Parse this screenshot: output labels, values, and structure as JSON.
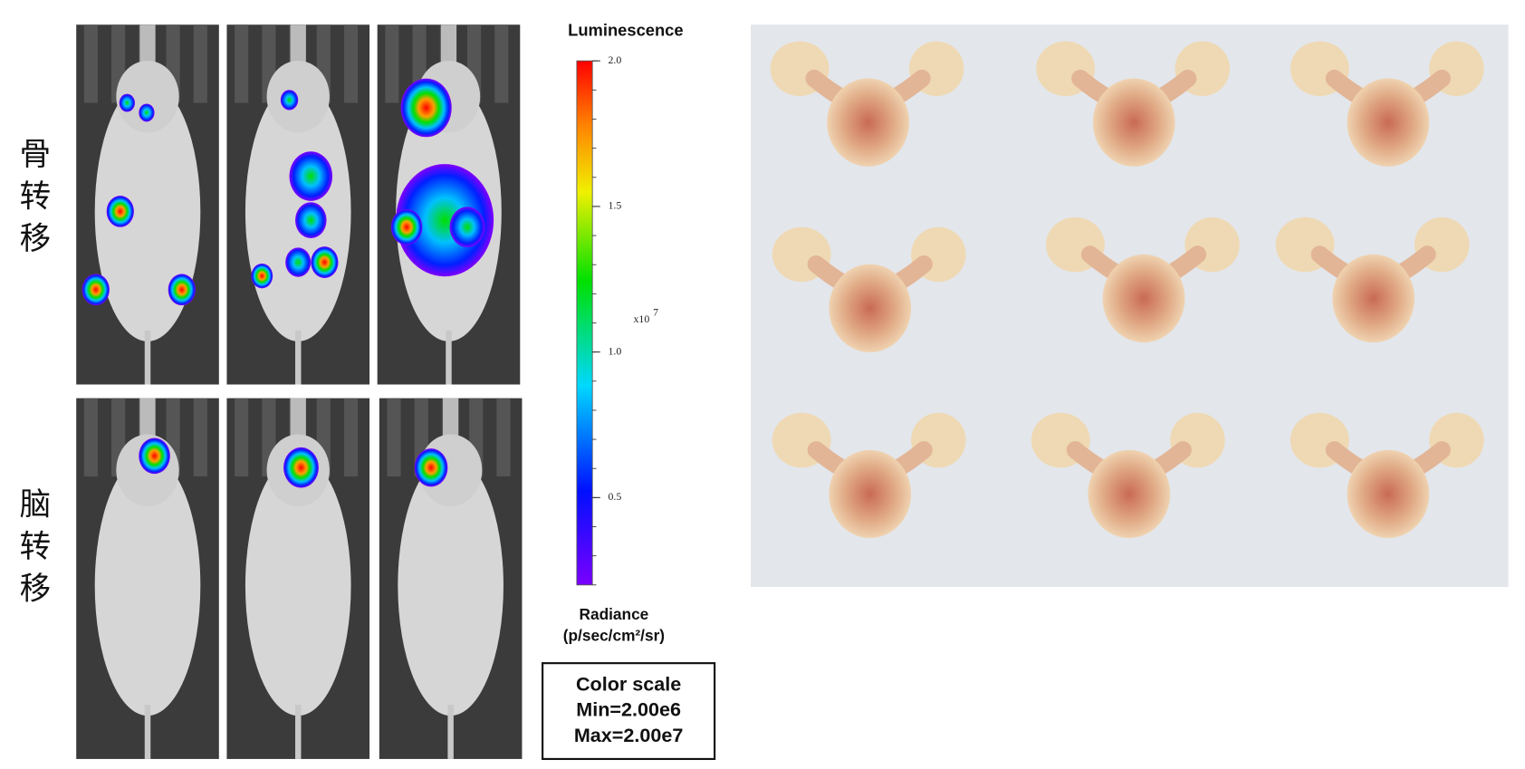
{
  "row_labels": [
    "骨转移",
    "脑转移"
  ],
  "colorbar": {
    "title": "Luminescence",
    "lim": [
      0.2,
      2.0
    ],
    "ticks": [
      {
        "value": 2.0,
        "label": "2.0"
      },
      {
        "value": 1.5,
        "label": "1.5"
      },
      {
        "value": 1.0,
        "label": "1.0"
      },
      {
        "value": 0.5,
        "label": "0.5"
      }
    ],
    "multiplier": "x10",
    "exponent": "7",
    "unit_line1": "Radiance",
    "unit_line2": "(p/sec/cm²/sr)"
  },
  "color_scale_box": {
    "title": "Color scale",
    "min": "Min=2.00e6",
    "max": "Max=2.00e7"
  }
}
